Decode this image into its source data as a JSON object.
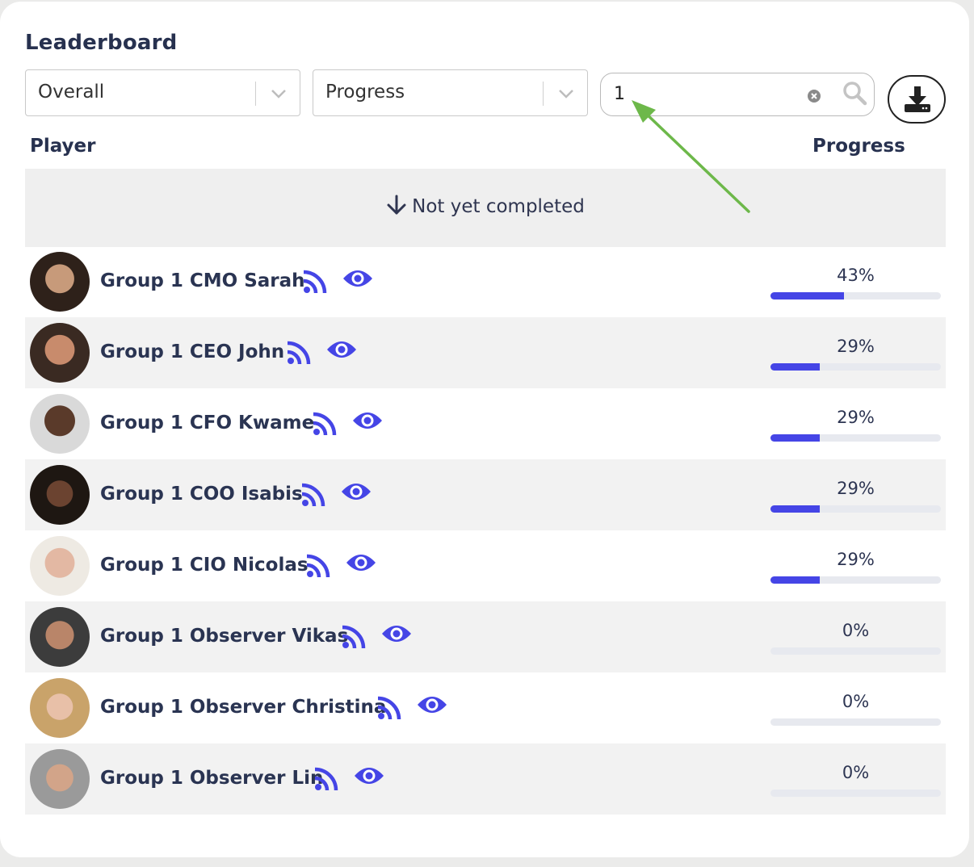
{
  "title": "Leaderboard",
  "filters": {
    "scope_value": "Overall",
    "metric_value": "Progress"
  },
  "search": {
    "value": "1"
  },
  "columns": {
    "player": "Player",
    "progress": "Progress"
  },
  "banner": {
    "label": "Not yet completed"
  },
  "colors": {
    "accent": "#4545e6",
    "arrow": "#6db84a"
  },
  "players": [
    {
      "name": "Group 1 CMO Sarah",
      "progress_label": "43%",
      "progress": 43
    },
    {
      "name": "Group 1 CEO John",
      "progress_label": "29%",
      "progress": 29
    },
    {
      "name": "Group 1 CFO Kwame",
      "progress_label": "29%",
      "progress": 29
    },
    {
      "name": "Group 1 COO Isabis",
      "progress_label": "29%",
      "progress": 29
    },
    {
      "name": "Group 1 CIO Nicolas",
      "progress_label": "29%",
      "progress": 29
    },
    {
      "name": "Group 1 Observer Vikas",
      "progress_label": "0%",
      "progress": 0
    },
    {
      "name": "Group 1 Observer Christina",
      "progress_label": "0%",
      "progress": 0
    },
    {
      "name": "Group 1 Observer Lin",
      "progress_label": "0%",
      "progress": 0
    }
  ]
}
